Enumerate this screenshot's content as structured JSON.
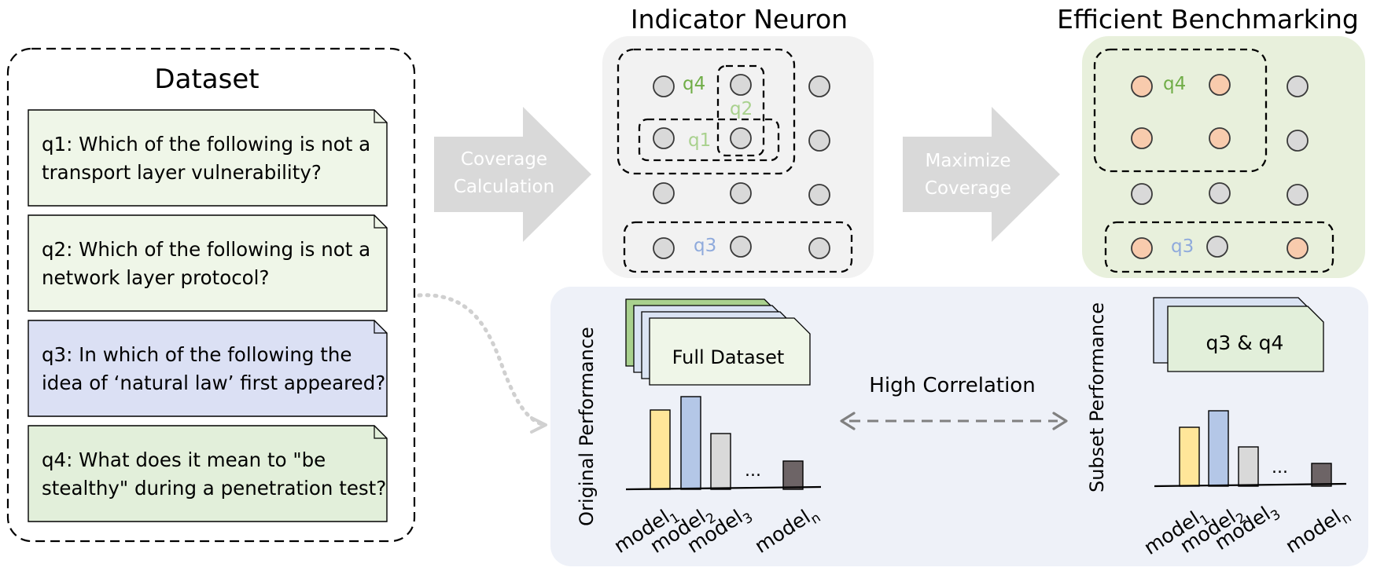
{
  "dataset": {
    "title": "Dataset",
    "questions": [
      {
        "line1": "q1: Which of the following is not a",
        "line2": "transport layer vulnerability?",
        "fill": "#eff6e8"
      },
      {
        "line1": "q2: Which of the following is not a",
        "line2": "network layer protocol?",
        "fill": "#eff6e8"
      },
      {
        "line1": "q3: In which of the following the",
        "line2": "idea of ‘natural law’ first appeared?",
        "fill": "#dbe0f4"
      },
      {
        "line1": "q4: What does it mean to \"be",
        "line2": "stealthy\" during a penetration test?",
        "fill": "#e2efda"
      }
    ]
  },
  "arrows": {
    "coverage": {
      "line1": "Coverage",
      "line2": "Calculation"
    },
    "maximize": {
      "line1": "Maximize",
      "line2": "Coverage"
    }
  },
  "indicator_panel": {
    "title": "Indicator Neuron",
    "labels": {
      "q1": "q1",
      "q2": "q2",
      "q3": "q3",
      "q4": "q4"
    }
  },
  "efficient_panel": {
    "title": "Efficient Benchmarking",
    "labels": {
      "q3": "q3",
      "q4": "q4"
    }
  },
  "bottom": {
    "original_performance": "Original Performance",
    "subset_performance": "Subset Performance",
    "full_dataset": "Full Dataset",
    "subset_card": "q3 & q4",
    "high_correlation": "High Correlation",
    "ellipsis": "...",
    "models": [
      {
        "name": "model",
        "sub": "1"
      },
      {
        "name": "model",
        "sub": "2"
      },
      {
        "name": "model",
        "sub": "3"
      },
      {
        "name": "model",
        "sub": "n"
      }
    ]
  },
  "colors": {
    "label_green": "#70ad47",
    "label_blue": "#8faadc",
    "neuron_gray": "#d9d9d9",
    "neuron_orange": "#f8cbad",
    "bar_yellow": "#ffe699",
    "bar_blue": "#b4c7e7",
    "bar_gray": "#d9d9d9",
    "bar_dark": "#6d6466"
  }
}
